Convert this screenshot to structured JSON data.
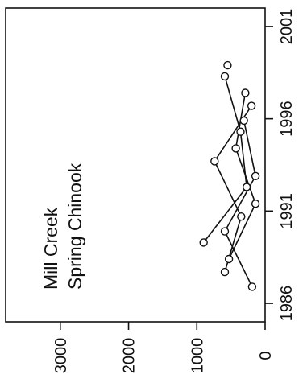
{
  "chart_data": {
    "type": "line",
    "orientation": "rotated-90-cw",
    "title_lines": [
      "Mill Creek",
      "Spring Chinook"
    ],
    "x_ticks": [
      "1986",
      "1991",
      "1996",
      "2001"
    ],
    "y_ticks": [
      "0",
      "1000",
      "2000",
      "3000"
    ],
    "xlim": [
      1985,
      2002
    ],
    "ylim": [
      0,
      3800
    ],
    "marker": "open-circle",
    "series": [
      {
        "x": [
          1986.9,
          1989.9,
          1992.9,
          1995.9
        ],
        "values": [
          190,
          590,
          140,
          310
        ]
      },
      {
        "x": [
          1987.7,
          1990.7,
          1993.7,
          1996.7
        ],
        "values": [
          590,
          350,
          740,
          200
        ]
      },
      {
        "x": [
          1988.4,
          1991.4,
          1994.4,
          1997.4
        ],
        "values": [
          530,
          140,
          430,
          290
        ]
      },
      {
        "x": [
          1989.3,
          1992.3,
          1995.3,
          1998.3
        ],
        "values": [
          900,
          270,
          360,
          590
        ]
      },
      {
        "x": [
          1998.9
        ],
        "values": [
          550
        ]
      }
    ]
  }
}
